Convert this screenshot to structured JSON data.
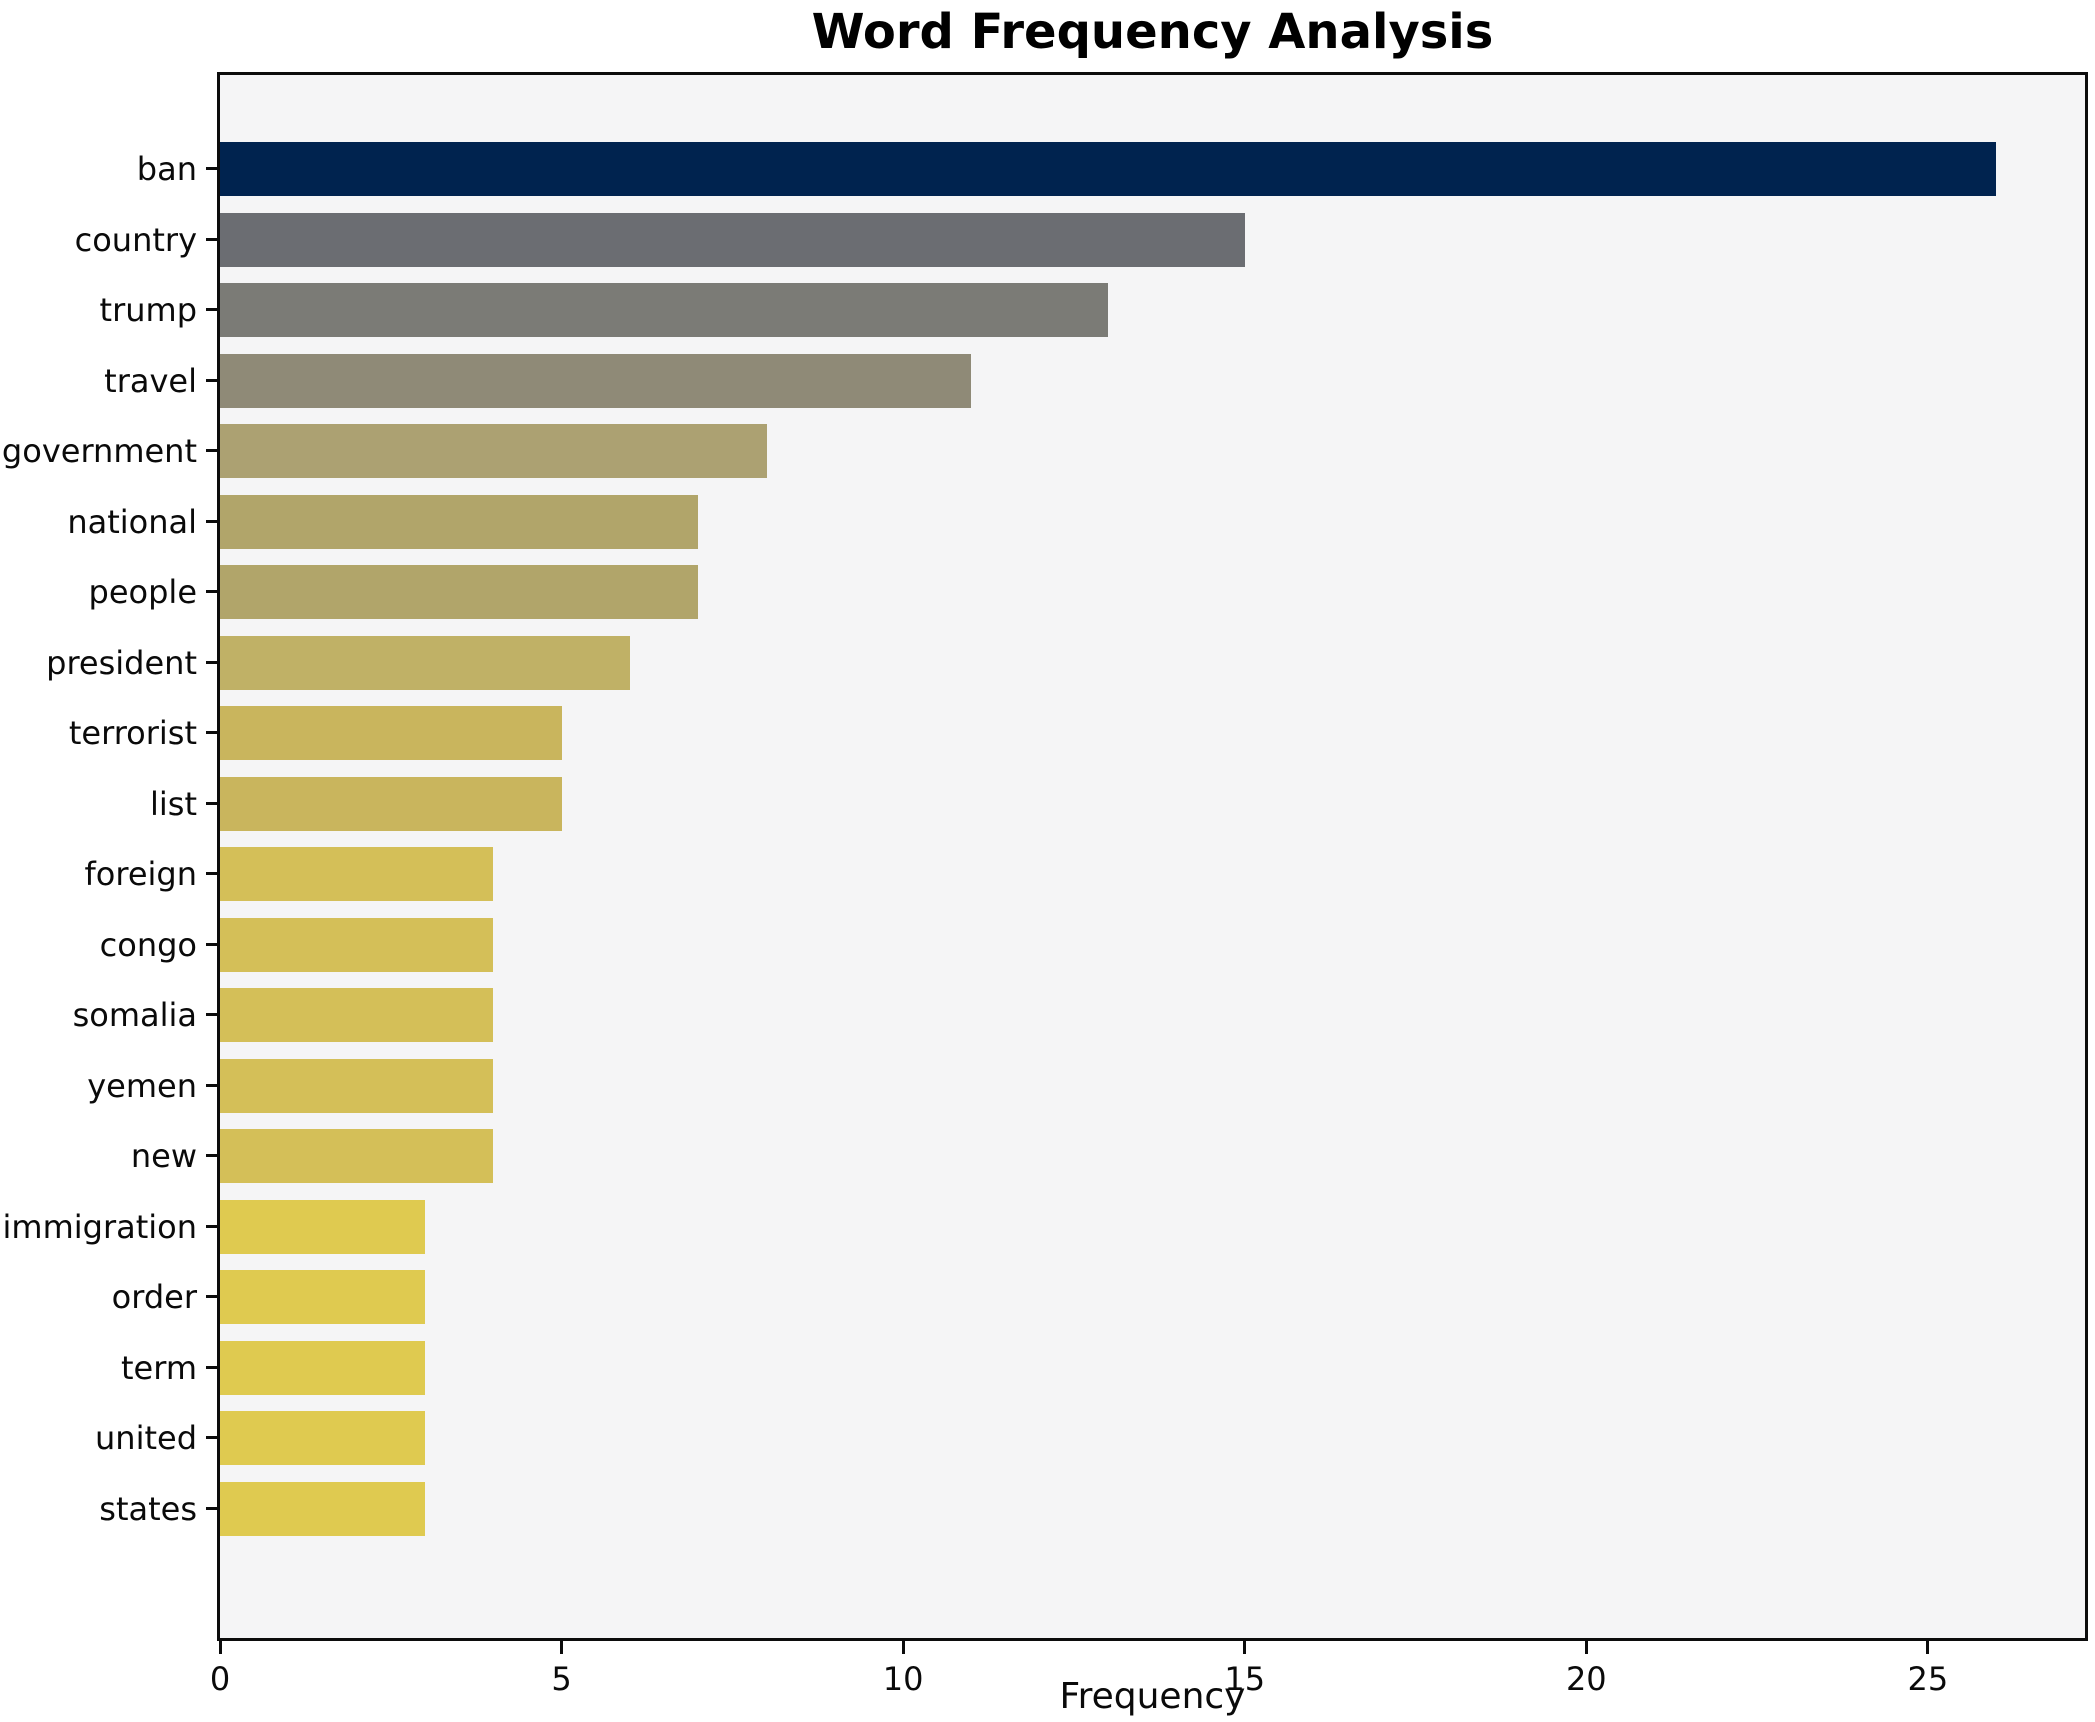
{
  "chart_data": {
    "type": "bar",
    "orientation": "horizontal",
    "title": "Word Frequency Analysis",
    "xlabel": "Frequency",
    "ylabel": "",
    "categories": [
      "ban",
      "country",
      "trump",
      "travel",
      "government",
      "national",
      "people",
      "president",
      "terrorist",
      "list",
      "foreign",
      "congo",
      "somalia",
      "yemen",
      "new",
      "immigration",
      "order",
      "term",
      "united",
      "states"
    ],
    "values": [
      26,
      15,
      13,
      11,
      8,
      7,
      7,
      6,
      5,
      5,
      4,
      4,
      4,
      4,
      4,
      3,
      3,
      3,
      3,
      3
    ],
    "bar_colors": [
      "#00234f",
      "#6b6d72",
      "#7b7b76",
      "#8f8a77",
      "#aca172",
      "#b1a56a",
      "#b1a56a",
      "#c0b166",
      "#c9b55d",
      "#c9b55d",
      "#d4bf58",
      "#d4bf58",
      "#d4bf58",
      "#d4bf58",
      "#d4bf58",
      "#dfca50",
      "#dfca50",
      "#dfca50",
      "#dfca50",
      "#dfca50"
    ],
    "xlim": [
      0,
      27.3
    ],
    "xticks": [
      0,
      5,
      10,
      15,
      20,
      25
    ],
    "grid": false,
    "legend": null,
    "plot_background": "#f5f5f6",
    "figure_background": "#ffffff",
    "spine_color": "#0c0c0c"
  }
}
